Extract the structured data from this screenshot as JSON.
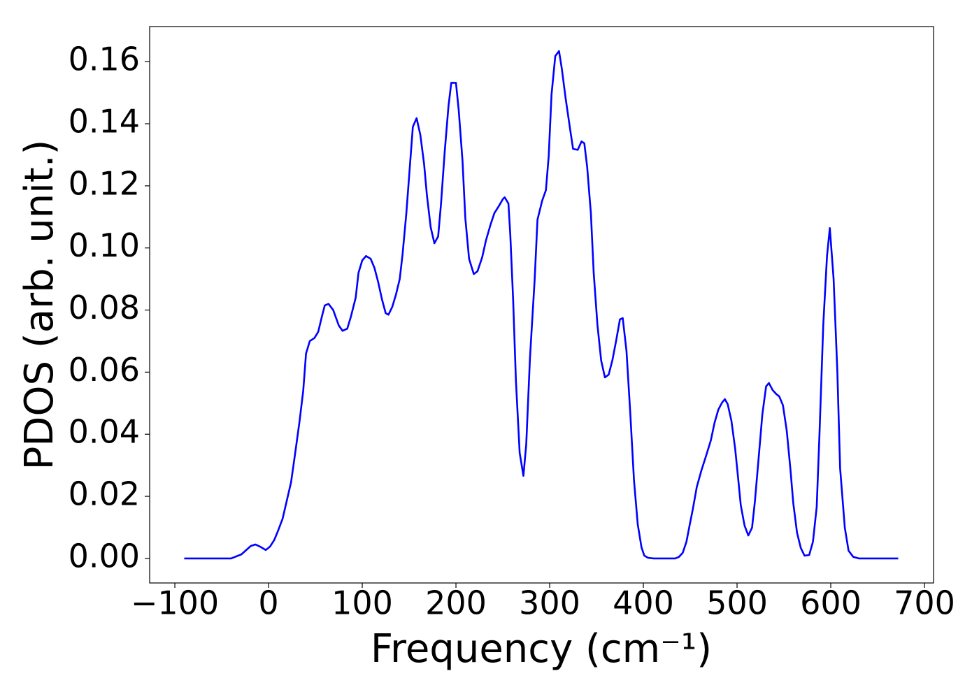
{
  "chart_data": {
    "type": "line",
    "xlabel": "Frequency (cm⁻¹)",
    "ylabel": "PDOS (arb. unit.)",
    "xlim": [
      -126.9,
      709.7
    ],
    "ylim": [
      -0.0079,
      0.1713
    ],
    "xticks": [
      {
        "value": -100,
        "label": "−100"
      },
      0,
      100,
      200,
      300,
      400,
      500,
      600,
      700
    ],
    "yticks": [
      {
        "value": 0,
        "label": "0.00"
      },
      {
        "value": 0.02,
        "label": "0.02"
      },
      {
        "value": 0.04,
        "label": "0.04"
      },
      {
        "value": 0.06,
        "label": "0.06"
      },
      {
        "value": 0.08,
        "label": "0.08"
      },
      {
        "value": 0.1,
        "label": "0.10"
      },
      {
        "value": 0.12,
        "label": "0.12"
      },
      {
        "value": 0.14,
        "label": "0.14"
      },
      {
        "value": 0.16,
        "label": "0.16"
      }
    ],
    "grid": false,
    "x": [
      -90,
      -40,
      -29,
      -19,
      -14,
      -9,
      -3,
      1.5,
      6,
      10,
      15,
      19,
      24,
      28,
      33,
      37,
      40,
      44,
      49,
      53,
      57,
      60,
      64,
      69,
      75,
      79,
      84,
      88,
      93,
      96,
      100,
      104,
      109,
      113,
      117,
      121,
      125,
      128,
      132,
      136,
      140,
      143,
      147,
      151,
      154,
      158,
      162,
      166,
      169,
      173,
      177,
      181,
      184,
      188,
      192,
      195,
      200,
      203,
      207,
      210,
      214,
      219,
      223,
      228,
      232,
      237,
      241,
      246,
      250,
      252,
      256,
      258,
      261,
      264,
      268,
      272,
      275,
      279,
      284,
      287,
      292,
      296,
      299,
      302,
      306,
      310,
      313,
      317,
      322,
      325,
      330,
      334,
      337,
      340,
      344,
      347,
      351,
      355,
      359,
      363,
      367,
      371,
      375,
      378,
      382,
      386,
      390,
      394,
      398,
      401,
      405,
      411,
      434,
      438,
      442,
      446,
      449,
      453,
      457,
      462,
      467,
      472,
      476,
      480,
      484,
      487,
      490,
      494,
      498,
      501,
      504,
      508,
      512,
      516,
      519,
      523,
      527,
      531,
      534,
      538,
      542,
      545,
      549,
      553,
      557,
      560,
      564,
      568,
      572,
      577,
      581,
      585,
      588,
      592,
      596,
      599,
      603,
      607,
      610,
      615,
      619,
      624,
      630,
      672
    ],
    "series": [
      {
        "name": "PDOS",
        "color": "#0000ff",
        "values": [
          0,
          0,
          0.0013,
          0.004,
          0.0045,
          0.0038,
          0.0027,
          0.0038,
          0.0059,
          0.0088,
          0.0128,
          0.018,
          0.0245,
          0.033,
          0.044,
          0.054,
          0.066,
          0.07,
          0.071,
          0.073,
          0.078,
          0.0815,
          0.082,
          0.08,
          0.075,
          0.0733,
          0.074,
          0.078,
          0.084,
          0.092,
          0.096,
          0.0974,
          0.0965,
          0.0936,
          0.089,
          0.0835,
          0.079,
          0.0785,
          0.081,
          0.085,
          0.09,
          0.0979,
          0.111,
          0.127,
          0.139,
          0.1418,
          0.1364,
          0.127,
          0.117,
          0.1067,
          0.1015,
          0.1037,
          0.114,
          0.131,
          0.1456,
          0.1532,
          0.1532,
          0.1442,
          0.128,
          0.1096,
          0.0965,
          0.0916,
          0.0925,
          0.097,
          0.1024,
          0.1076,
          0.1112,
          0.1136,
          0.1157,
          0.1163,
          0.1143,
          0.1042,
          0.0835,
          0.0572,
          0.034,
          0.0266,
          0.0367,
          0.0646,
          0.0898,
          0.1091,
          0.1152,
          0.1186,
          0.1296,
          0.1494,
          0.1618,
          0.1634,
          0.1577,
          0.1483,
          0.1379,
          0.1319,
          0.1316,
          0.1343,
          0.1337,
          0.1262,
          0.1112,
          0.092,
          0.0752,
          0.0637,
          0.0583,
          0.0592,
          0.0639,
          0.0702,
          0.077,
          0.0774,
          0.0668,
          0.047,
          0.0252,
          0.011,
          0.0036,
          0.0009,
          0.0002,
          0,
          0,
          0.0005,
          0.0018,
          0.0054,
          0.0101,
          0.0162,
          0.023,
          0.0284,
          0.0331,
          0.038,
          0.0437,
          0.0479,
          0.0502,
          0.0513,
          0.0497,
          0.0443,
          0.0353,
          0.0263,
          0.0171,
          0.0106,
          0.0074,
          0.0099,
          0.0182,
          0.0322,
          0.0464,
          0.0554,
          0.0565,
          0.0542,
          0.0529,
          0.0522,
          0.0493,
          0.0412,
          0.0286,
          0.0178,
          0.0083,
          0.0034,
          0.0009,
          0.0011,
          0.0054,
          0.0166,
          0.0403,
          0.0752,
          0.0974,
          0.1064,
          0.0902,
          0.0605,
          0.029,
          0.0099,
          0.0025,
          0.0005,
          0,
          0
        ]
      }
    ]
  }
}
